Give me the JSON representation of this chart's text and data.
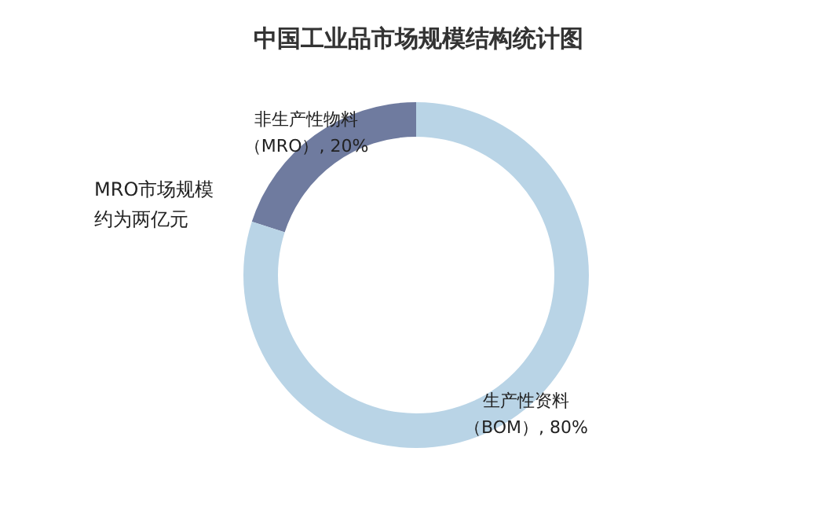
{
  "chart_data": {
    "type": "donut",
    "title": "中国工业品市场规模结构统计图",
    "categories": [
      "非生产性物料（MRO）",
      "生产性资料（BOM）"
    ],
    "values": [
      20,
      80
    ],
    "colors": [
      "#6f7b9f",
      "#b9d4e6"
    ],
    "value_labels": [
      ", 20%",
      ", 80%"
    ],
    "annotations": [
      "MRO市场规模约为两亿元"
    ]
  }
}
